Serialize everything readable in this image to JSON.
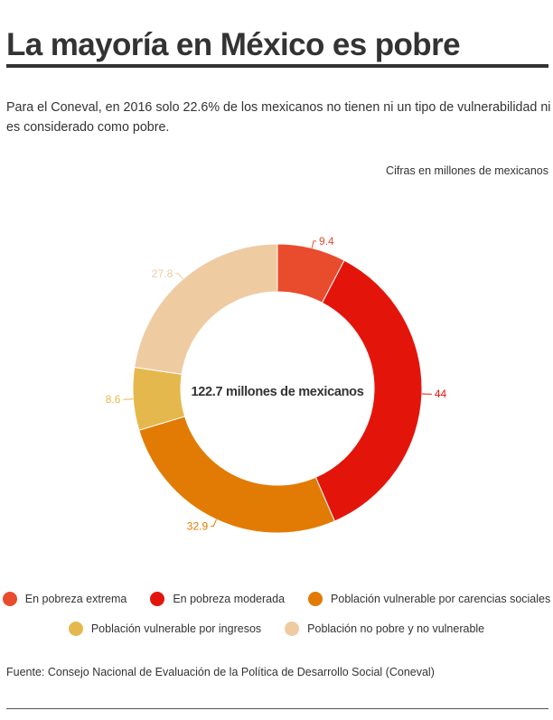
{
  "header": {
    "title": "La mayoría en México es pobre",
    "subtitle": "Para el Coneval, en 2016 solo 22.6% de los mexicanos no tienen ni un tipo de vulnerabilidad ni es considerado como pobre.",
    "units_note": "Cifras en millones de mexicanos"
  },
  "chart_data": {
    "type": "pie",
    "variant": "donut",
    "center_label": "122.7 millones de mexicanos",
    "legend_position": "bottom",
    "slices": [
      {
        "label": "En pobreza extrema",
        "value": 9.4,
        "color": "#e84c2c"
      },
      {
        "label": "En pobreza moderada",
        "value": 44,
        "color": "#e3150b"
      },
      {
        "label": "Población vulnerable por carencias sociales",
        "value": 32.9,
        "color": "#e27b03"
      },
      {
        "label": "Población vulnerable por ingresos",
        "value": 8.6,
        "color": "#e5b84e"
      },
      {
        "label": "Población no pobre y no vulnerable",
        "value": 27.8,
        "color": "#efcba2"
      }
    ]
  },
  "footer": {
    "source": "Fuente: Consejo Nacional de Evaluación de la Política de Desarrollo Social (Coneval)"
  }
}
